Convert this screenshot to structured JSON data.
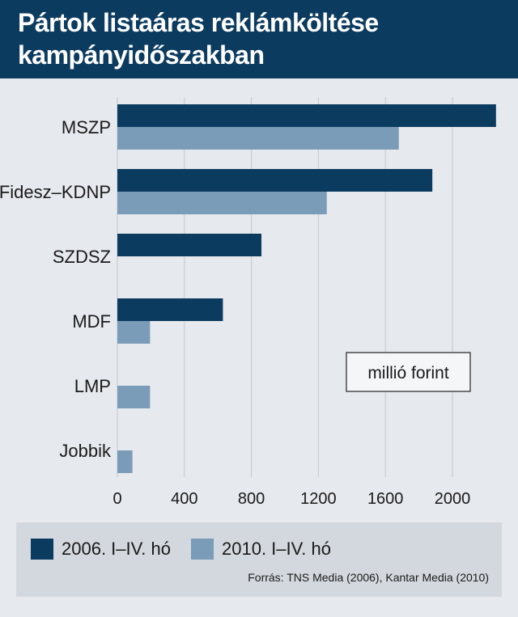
{
  "chart_data": {
    "type": "bar",
    "orientation": "horizontal",
    "title": "Pártok listaáras reklámköltése kampányidőszakban",
    "categories": [
      "MSZP",
      "Fidesz–KDNP",
      "SZDSZ",
      "MDF",
      "LMP",
      "Jobbik"
    ],
    "series": [
      {
        "name": "2006.  I–IV. hó",
        "color": "#0c3b60",
        "values": [
          2260,
          1880,
          860,
          630,
          null,
          null
        ]
      },
      {
        "name": "2010.  I–IV. hó",
        "color": "#7a9cb8",
        "values": [
          1680,
          1250,
          null,
          195,
          195,
          90
        ]
      }
    ],
    "xticks": [
      0,
      400,
      800,
      1200,
      1600,
      2000
    ],
    "xlim": [
      0,
      2300
    ],
    "unit_label": "millió forint",
    "grid": "vertical",
    "legend_position": "bottom",
    "source": "Forrás: TNS Media (2006), Kantar Media (2010)"
  }
}
